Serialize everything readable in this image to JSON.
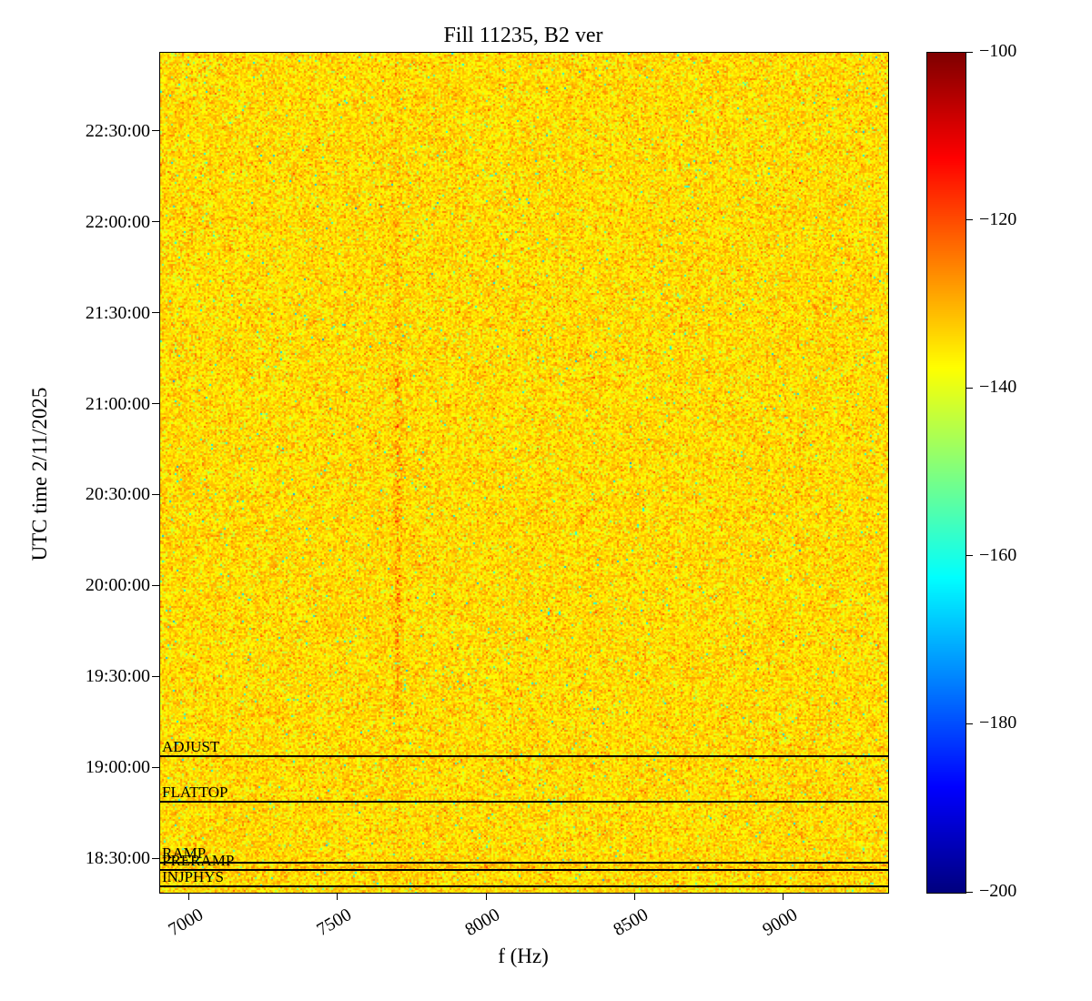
{
  "chart_data": {
    "type": "heatmap",
    "title": "Fill 11235, B2 ver",
    "xlabel": "f (Hz)",
    "ylabel": "UTC time 2/11/2025",
    "x_range_hz": [
      6900,
      9350
    ],
    "time_start": "18:19:00",
    "time_end": "22:56:00",
    "x_ticks": [
      {
        "value": 7000,
        "label": "7000"
      },
      {
        "value": 7500,
        "label": "7500"
      },
      {
        "value": 8000,
        "label": "8000"
      },
      {
        "value": 8500,
        "label": "8500"
      },
      {
        "value": 9000,
        "label": "9000"
      }
    ],
    "y_ticks": [
      {
        "time": "22:30:00",
        "label": "22:30:00"
      },
      {
        "time": "22:00:00",
        "label": "22:00:00"
      },
      {
        "time": "21:30:00",
        "label": "21:30:00"
      },
      {
        "time": "21:00:00",
        "label": "21:00:00"
      },
      {
        "time": "20:30:00",
        "label": "20:30:00"
      },
      {
        "time": "20:00:00",
        "label": "20:00:00"
      },
      {
        "time": "19:30:00",
        "label": "19:30:00"
      },
      {
        "time": "19:00:00",
        "label": "19:00:00"
      },
      {
        "time": "18:30:00",
        "label": "18:30:00"
      }
    ],
    "colorbar": {
      "colormap": "jet",
      "vmin": -200,
      "vmax": -100,
      "ticks": [
        {
          "value": -100,
          "label": "−100"
        },
        {
          "value": -120,
          "label": "−120"
        },
        {
          "value": -140,
          "label": "−140"
        },
        {
          "value": -160,
          "label": "−160"
        },
        {
          "value": -180,
          "label": "−180"
        },
        {
          "value": -200,
          "label": "−200"
        }
      ]
    },
    "noise": {
      "mean_db": -134,
      "std_db": 4.0,
      "speck_prob": 0.015,
      "speck_drop_db": 30
    },
    "features": [
      {
        "type": "vertical-streak",
        "f_hz": 7700,
        "sigma_hz": 12,
        "boost_db": 9,
        "t_strong_start": "19:20:00",
        "t_strong_end": "21:10:00"
      },
      {
        "type": "horizontal-band",
        "time": "18:27:00",
        "sigma_min": 1.5,
        "boost_db": 6
      }
    ],
    "event_lines": [
      {
        "label": "ADJUST",
        "time": "19:04:00"
      },
      {
        "label": "FLATTOP",
        "time": "18:49:00"
      },
      {
        "label": "RAMP",
        "time": "18:29:00"
      },
      {
        "label": "PRERAMP",
        "time": "18:26:30"
      },
      {
        "label": "INJPHYS",
        "time": "18:21:00"
      }
    ]
  }
}
